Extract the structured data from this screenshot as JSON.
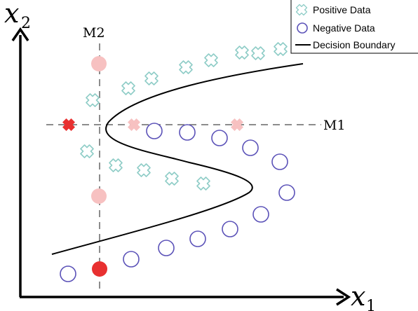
{
  "axes": {
    "x_label": "x",
    "x_subscript": "1",
    "y_label": "x",
    "y_subscript": "2"
  },
  "lines": {
    "m1_label": "M1",
    "m2_label": "M2"
  },
  "legend": {
    "positive_label": "Positive Data",
    "negative_label": "Negative Data",
    "boundary_label": "Decision Boundary"
  },
  "colors": {
    "positive": "#a8dcd6",
    "negative": "#5b52b8",
    "missing_light": "#f7c1c1",
    "missing_strong": "#e83030",
    "boundary": "#000000"
  }
}
